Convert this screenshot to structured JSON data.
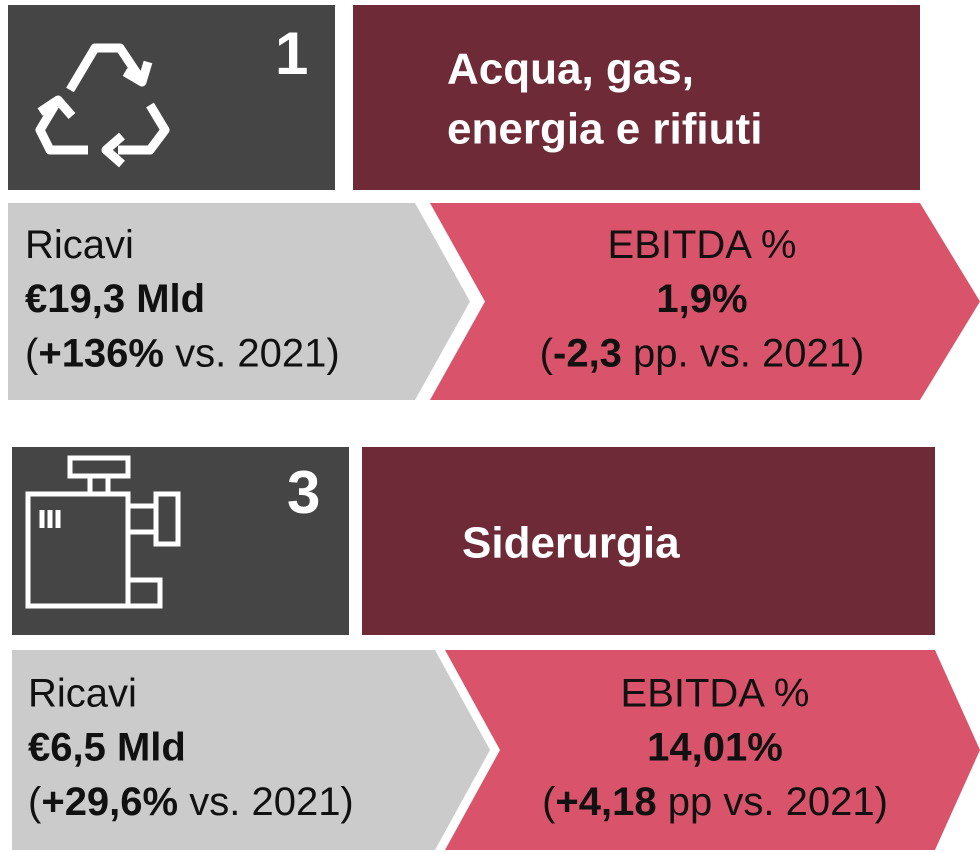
{
  "sections": [
    {
      "number": "1",
      "title": [
        "Acqua, gas,",
        "energia e rifiuti"
      ],
      "revenue": {
        "label": "Ricavi",
        "value": "€19,3 Mld",
        "change": [
          "(",
          "+136%",
          " vs. 2021)"
        ]
      },
      "ebitda": {
        "label": "EBITDA %",
        "value": "1,9%",
        "change": [
          "(",
          "-2,3",
          " pp. vs. 2021)"
        ]
      }
    },
    {
      "number": "3",
      "title": [
        "Siderurgia"
      ],
      "revenue": {
        "label": "Ricavi",
        "value": "€6,5 Mld",
        "change": [
          "(",
          "+29,6%",
          " vs. 2021)"
        ]
      },
      "ebitda": {
        "label": "EBITDA %",
        "value": "14,01%",
        "change": [
          "(",
          "+4,18",
          " pp vs. 2021)"
        ]
      }
    }
  ]
}
